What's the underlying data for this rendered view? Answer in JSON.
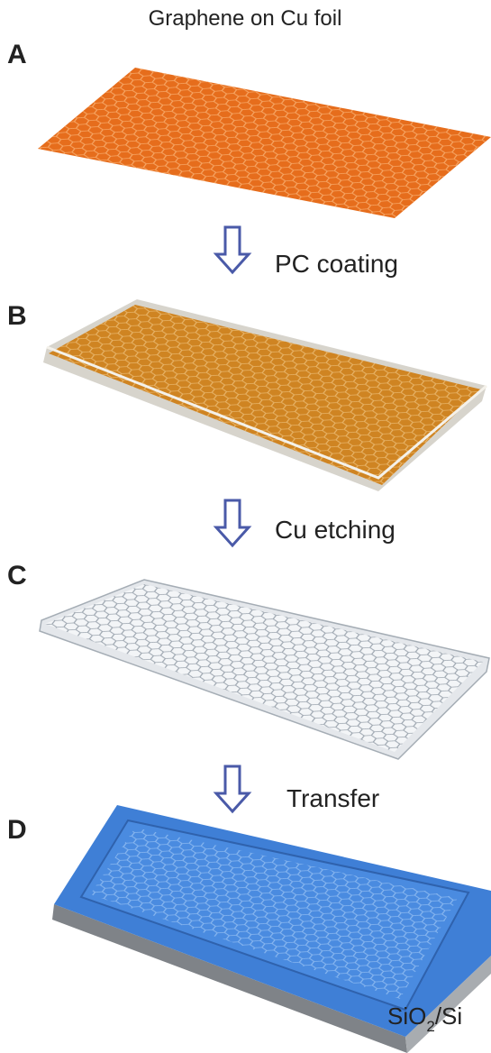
{
  "header": {
    "title": "Graphene on Cu foil"
  },
  "panels": [
    {
      "label": "A"
    },
    {
      "label": "B"
    },
    {
      "label": "C"
    },
    {
      "label": "D"
    }
  ],
  "arrows": [
    {
      "label": "PC coating"
    },
    {
      "label": "Cu etching"
    },
    {
      "label": "Transfer"
    }
  ],
  "substrate_label": {
    "main": "SiO",
    "sub": "2",
    "rest": "/Si"
  }
}
